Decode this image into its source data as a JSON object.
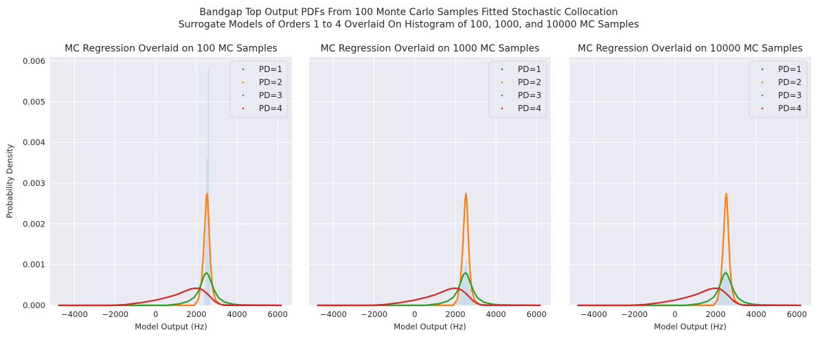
{
  "figure": {
    "suptitle_line1": "Bandgap Top Output PDFs From 100 Monte Carlo Samples Fitted Stochastic Collocation",
    "suptitle_line2": "Surrogate Models of Orders 1 to 4 Overlaid On Histogram of 100, 1000, and 10000 MC Samples",
    "colors": {
      "background": "#eaeaf2",
      "grid": "#ffffff",
      "hist": "#a6cee3",
      "series": [
        "#1f77b4",
        "#ff7f0e",
        "#2ca02c",
        "#d62728"
      ]
    }
  },
  "chart_data": [
    {
      "type": "line",
      "title": "MC Regression Overlaid on 100 MC Samples",
      "xlabel": "Model Output (Hz)",
      "ylabel": "Probability Density",
      "xlim": [
        -5200,
        6700
      ],
      "ylim": [
        0,
        0.0061
      ],
      "xticks": [
        -4000,
        -2000,
        0,
        2000,
        4000,
        6000
      ],
      "xtick_labels": [
        "−4000",
        "−2000",
        "0",
        "2000",
        "4000",
        "6000"
      ],
      "yticks": [
        0,
        0.001,
        0.002,
        0.003,
        0.004,
        0.005,
        0.006
      ],
      "ytick_labels": [
        "0.000",
        "0.001",
        "0.002",
        "0.003",
        "0.004",
        "0.005",
        "0.006"
      ],
      "grid": true,
      "legend_position": "top-right",
      "histogram": {
        "bins": [
          2380,
          2440,
          2500,
          2560,
          2620,
          2680
        ],
        "density": [
          0.0004,
          0.0016,
          0.0036,
          0.0058,
          0.0014,
          0.0003
        ]
      },
      "series": [
        {
          "name": "PD=1",
          "x": [
            -4800,
            1900,
            2100,
            2250,
            2350,
            2420,
            2480,
            2520,
            2560,
            2620,
            2700,
            2800,
            2950,
            3200,
            6200
          ],
          "y": [
            0,
            0,
            0.00015,
            0.0006,
            0.0013,
            0.002,
            0.0026,
            0.00275,
            0.0026,
            0.0019,
            0.001,
            0.0004,
            0.00012,
            2e-05,
            0
          ]
        },
        {
          "name": "PD=2",
          "x": [
            -4800,
            1900,
            2100,
            2250,
            2350,
            2420,
            2480,
            2520,
            2560,
            2620,
            2700,
            2800,
            2950,
            3200,
            6200
          ],
          "y": [
            0,
            0,
            0.00015,
            0.0006,
            0.0013,
            0.002,
            0.0026,
            0.00275,
            0.0026,
            0.0019,
            0.001,
            0.0004,
            0.00012,
            2e-05,
            0
          ]
        },
        {
          "name": "PD=3",
          "x": [
            -4800,
            500,
            1200,
            1600,
            1900,
            2100,
            2250,
            2400,
            2500,
            2600,
            2700,
            2900,
            3100,
            3400,
            3800,
            4200,
            6200
          ],
          "y": [
            0,
            0,
            4e-05,
            0.0001,
            0.0002,
            0.00035,
            0.00055,
            0.00076,
            0.0008,
            0.00074,
            0.0006,
            0.00035,
            0.00018,
            8e-05,
            3e-05,
            1e-05,
            0
          ]
        },
        {
          "name": "PD=4",
          "x": [
            -4800,
            -2200,
            -1500,
            -800,
            0,
            600,
            1000,
            1400,
            1700,
            1900,
            2100,
            2300,
            2500,
            2700,
            2900,
            3100,
            3300,
            3500,
            6200
          ],
          "y": [
            0,
            0,
            2e-05,
            6e-05,
            0.00013,
            0.0002,
            0.00026,
            0.00034,
            0.0004,
            0.00042,
            0.00042,
            0.00038,
            0.0003,
            0.0002,
            0.0001,
            4e-05,
            1e-05,
            0,
            0
          ]
        }
      ]
    },
    {
      "type": "line",
      "title": "MC Regression Overlaid on 1000 MC Samples",
      "xlabel": "Model Output (Hz)",
      "ylabel": "",
      "xlim": [
        -5200,
        6700
      ],
      "ylim": [
        0,
        0.0061
      ],
      "xticks": [
        -4000,
        -2000,
        0,
        2000,
        4000,
        6000
      ],
      "xtick_labels": [
        "−4000",
        "−2000",
        "0",
        "2000",
        "4000",
        "6000"
      ],
      "yticks": [
        0,
        0.001,
        0.002,
        0.003,
        0.004,
        0.005,
        0.006
      ],
      "ytick_labels": [],
      "grid": true,
      "legend_position": "top-right",
      "histogram": {
        "bins": [
          1600,
          1800,
          2000,
          2200,
          2300,
          2400,
          2500,
          2600,
          2700,
          2800,
          3000,
          3200,
          3500
        ],
        "density": [
          2e-05,
          5e-05,
          0.00012,
          0.0003,
          0.0006,
          0.00095,
          0.0011,
          0.0008,
          0.0004,
          0.00015,
          5e-05,
          1e-05
        ]
      },
      "series": [
        {
          "name": "PD=1",
          "x": [
            -4800,
            1900,
            2100,
            2250,
            2350,
            2420,
            2480,
            2520,
            2560,
            2620,
            2700,
            2800,
            2950,
            3200,
            6200
          ],
          "y": [
            0,
            0,
            0.00015,
            0.0006,
            0.0013,
            0.002,
            0.0026,
            0.00275,
            0.0026,
            0.0019,
            0.001,
            0.0004,
            0.00012,
            2e-05,
            0
          ]
        },
        {
          "name": "PD=2",
          "x": [
            -4800,
            1900,
            2100,
            2250,
            2350,
            2420,
            2480,
            2520,
            2560,
            2620,
            2700,
            2800,
            2950,
            3200,
            6200
          ],
          "y": [
            0,
            0,
            0.00015,
            0.0006,
            0.0013,
            0.002,
            0.0026,
            0.00275,
            0.0026,
            0.0019,
            0.001,
            0.0004,
            0.00012,
            2e-05,
            0
          ]
        },
        {
          "name": "PD=3",
          "x": [
            -4800,
            500,
            1200,
            1600,
            1900,
            2100,
            2250,
            2400,
            2500,
            2600,
            2700,
            2900,
            3100,
            3400,
            3800,
            4200,
            6200
          ],
          "y": [
            0,
            0,
            4e-05,
            0.0001,
            0.0002,
            0.00035,
            0.00055,
            0.00076,
            0.0008,
            0.00074,
            0.0006,
            0.00035,
            0.00018,
            8e-05,
            3e-05,
            1e-05,
            0
          ]
        },
        {
          "name": "PD=4",
          "x": [
            -4800,
            -2200,
            -1500,
            -800,
            0,
            600,
            1000,
            1400,
            1700,
            1900,
            2100,
            2300,
            2500,
            2700,
            2900,
            3100,
            3300,
            3500,
            6200
          ],
          "y": [
            0,
            0,
            2e-05,
            6e-05,
            0.00013,
            0.0002,
            0.00026,
            0.00034,
            0.0004,
            0.00042,
            0.00042,
            0.00038,
            0.0003,
            0.0002,
            0.0001,
            4e-05,
            1e-05,
            0,
            0
          ]
        }
      ]
    },
    {
      "type": "line",
      "title": "MC Regression Overlaid on 10000 MC Samples",
      "xlabel": "Model Output (Hz)",
      "ylabel": "",
      "xlim": [
        -5200,
        6700
      ],
      "ylim": [
        0,
        0.0061
      ],
      "xticks": [
        -4000,
        -2000,
        0,
        2000,
        4000,
        6000
      ],
      "xtick_labels": [
        "−4000",
        "−2000",
        "0",
        "2000",
        "4000",
        "6000"
      ],
      "yticks": [
        0,
        0.001,
        0.002,
        0.003,
        0.004,
        0.005,
        0.006
      ],
      "ytick_labels": [],
      "grid": true,
      "legend_position": "top-right",
      "histogram": {
        "bins": [
          1200,
          1500,
          1800,
          2000,
          2200,
          2300,
          2400,
          2500,
          2600,
          2700,
          2800,
          3000,
          3300,
          3800,
          4200
        ],
        "density": [
          2e-05,
          4e-05,
          0.0001,
          0.00022,
          0.00045,
          0.0007,
          0.0009,
          0.00085,
          0.0006,
          0.00035,
          0.00015,
          6e-05,
          2e-05,
          1e-05
        ]
      },
      "series": [
        {
          "name": "PD=1",
          "x": [
            -4800,
            1900,
            2100,
            2250,
            2350,
            2420,
            2480,
            2520,
            2560,
            2620,
            2700,
            2800,
            2950,
            3200,
            6200
          ],
          "y": [
            0,
            0,
            0.00015,
            0.0006,
            0.0013,
            0.002,
            0.0026,
            0.00275,
            0.0026,
            0.0019,
            0.001,
            0.0004,
            0.00012,
            2e-05,
            0
          ]
        },
        {
          "name": "PD=2",
          "x": [
            -4800,
            1900,
            2100,
            2250,
            2350,
            2420,
            2480,
            2520,
            2560,
            2620,
            2700,
            2800,
            2950,
            3200,
            6200
          ],
          "y": [
            0,
            0,
            0.00015,
            0.0006,
            0.0013,
            0.002,
            0.0026,
            0.00275,
            0.0026,
            0.0019,
            0.001,
            0.0004,
            0.00012,
            2e-05,
            0
          ]
        },
        {
          "name": "PD=3",
          "x": [
            -4800,
            500,
            1200,
            1600,
            1900,
            2100,
            2250,
            2400,
            2500,
            2600,
            2700,
            2900,
            3100,
            3400,
            3800,
            4200,
            6200
          ],
          "y": [
            0,
            0,
            4e-05,
            0.0001,
            0.0002,
            0.00035,
            0.00055,
            0.00076,
            0.0008,
            0.00074,
            0.0006,
            0.00035,
            0.00018,
            8e-05,
            3e-05,
            1e-05,
            0
          ]
        },
        {
          "name": "PD=4",
          "x": [
            -4800,
            -2200,
            -1500,
            -800,
            0,
            600,
            1000,
            1400,
            1700,
            1900,
            2100,
            2300,
            2500,
            2700,
            2900,
            3100,
            3300,
            3500,
            6200
          ],
          "y": [
            0,
            0,
            2e-05,
            6e-05,
            0.00013,
            0.0002,
            0.00026,
            0.00034,
            0.0004,
            0.00042,
            0.00042,
            0.00038,
            0.0003,
            0.0002,
            0.0001,
            4e-05,
            1e-05,
            0,
            0
          ]
        }
      ]
    }
  ]
}
